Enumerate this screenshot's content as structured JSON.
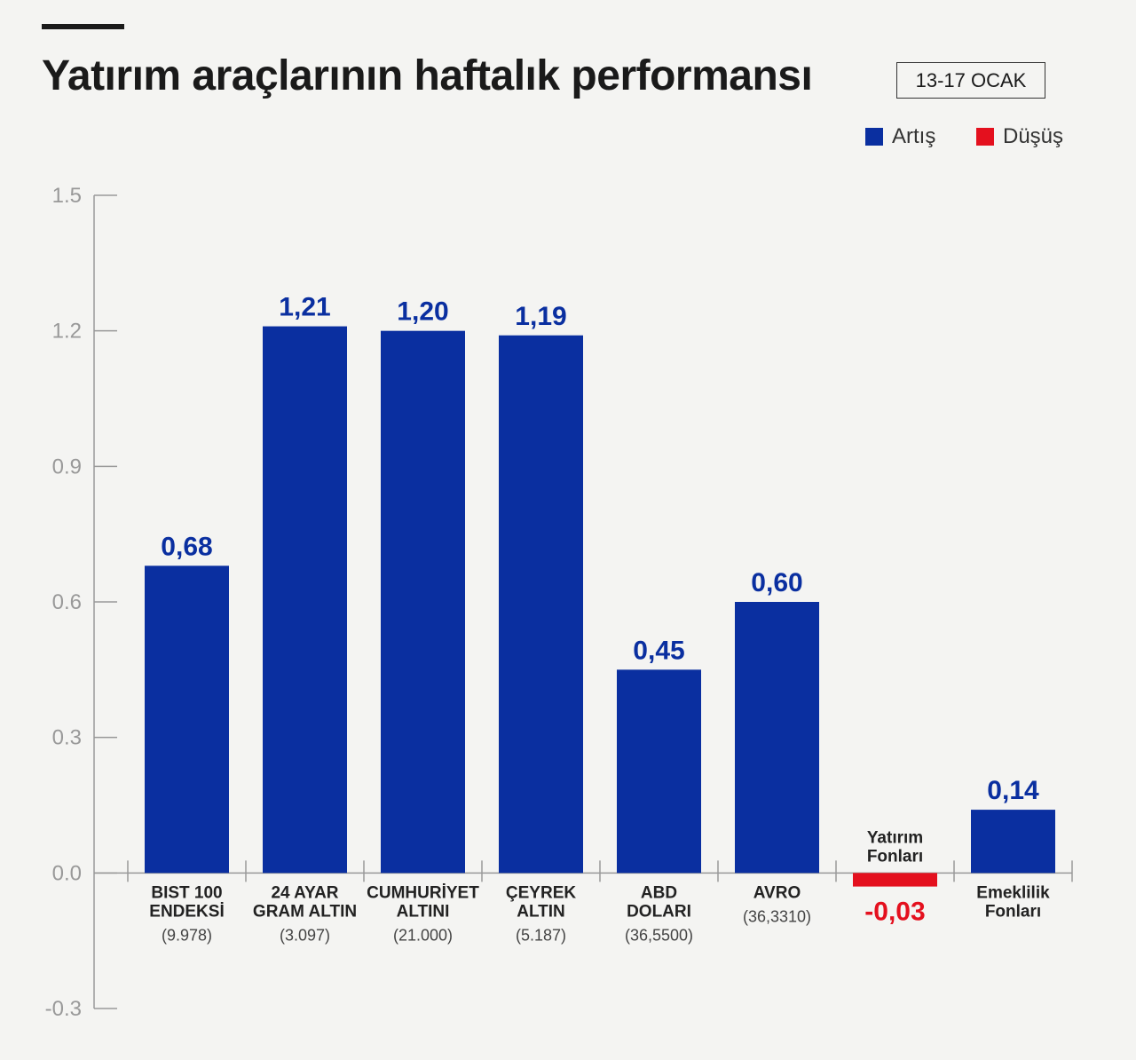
{
  "header": {
    "title": "Yatırım araçlarının haftalık performansı",
    "date_range": "13-17 OCAK"
  },
  "legend": {
    "up_label": "Artış",
    "down_label": "Düşüş",
    "up_color": "#0a2fa0",
    "down_color": "#e4101e"
  },
  "chart_data": {
    "type": "bar",
    "title": "Yatırım araçlarının haftalık performansı",
    "xlabel": "",
    "ylabel": "",
    "ylim": [
      -0.3,
      1.5
    ],
    "yticks": [
      1.5,
      1.2,
      0.9,
      0.6,
      0.3,
      0.0,
      -0.3
    ],
    "ytick_labels": [
      "1.5",
      "1.2",
      "0.9",
      "0.6",
      "0.3",
      "0.0",
      "-0.3"
    ],
    "grid": false,
    "legend_position": "top-right",
    "categories": [
      {
        "name_lines": [
          "BIST 100",
          "ENDEKSİ"
        ],
        "sub": "(9.978)",
        "value": 0.68,
        "label": "0,68"
      },
      {
        "name_lines": [
          "24 AYAR",
          "GRAM ALTIN"
        ],
        "sub": "(3.097)",
        "value": 1.21,
        "label": "1,21"
      },
      {
        "name_lines": [
          "CUMHURİYET",
          "ALTINI"
        ],
        "sub": "(21.000)",
        "value": 1.2,
        "label": "1,20"
      },
      {
        "name_lines": [
          "ÇEYREK",
          "ALTIN"
        ],
        "sub": "(5.187)",
        "value": 1.19,
        "label": "1,19"
      },
      {
        "name_lines": [
          "ABD",
          "DOLARI"
        ],
        "sub": "(36,5500)",
        "value": 0.45,
        "label": "0,45"
      },
      {
        "name_lines": [
          "AVRO"
        ],
        "sub": "(36,3310)",
        "value": 0.6,
        "label": "0,60"
      },
      {
        "name_lines": [
          "Yatırım",
          "Fonları"
        ],
        "sub": "",
        "value": -0.03,
        "label": "-0,03"
      },
      {
        "name_lines": [
          "Emeklilik",
          "Fonları"
        ],
        "sub": "",
        "value": 0.14,
        "label": "0,14"
      }
    ]
  }
}
